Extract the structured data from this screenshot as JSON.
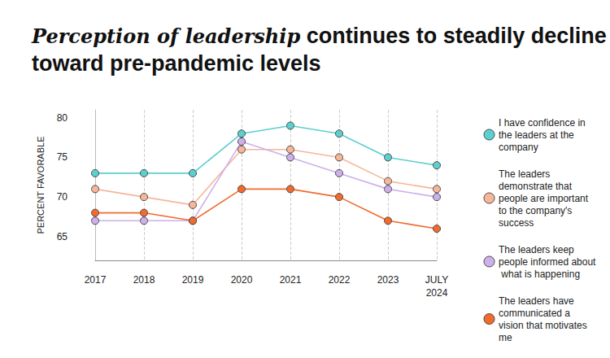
{
  "chart_data": {
    "type": "line",
    "title": "Perception of leadership continues to steadily decline toward pre-pandemic levels",
    "y_label": "PERCENT FAVORABLE",
    "categories": [
      "2017",
      "2018",
      "2019",
      "2020",
      "2021",
      "2022",
      "2023",
      "JULY 2024"
    ],
    "series": [
      {
        "name": "I have confidence in the leaders at the company",
        "color": "#5ccfcf",
        "values": [
          73,
          73,
          73,
          78,
          79,
          78,
          75,
          74
        ]
      },
      {
        "name": "The leaders demonstrate that people are important to the company's success",
        "color": "#f7b699",
        "values": [
          71,
          70,
          69,
          76,
          76,
          75,
          72,
          71
        ]
      },
      {
        "name": "The leaders keep people informed about what is happening",
        "color": "#cdb0ea",
        "values": [
          67,
          67,
          67,
          77,
          75,
          73,
          71,
          70
        ]
      },
      {
        "name": "The leaders have communicated a vision that motivates me",
        "color": "#f26a2e",
        "values": [
          68,
          68,
          67,
          71,
          71,
          70,
          67,
          66
        ]
      }
    ],
    "ylim": [
      62,
      81
    ],
    "yticks": [
      65,
      70,
      75,
      80
    ],
    "grid": true,
    "legend": "right",
    "marker": "circle",
    "line_style": "solid"
  }
}
